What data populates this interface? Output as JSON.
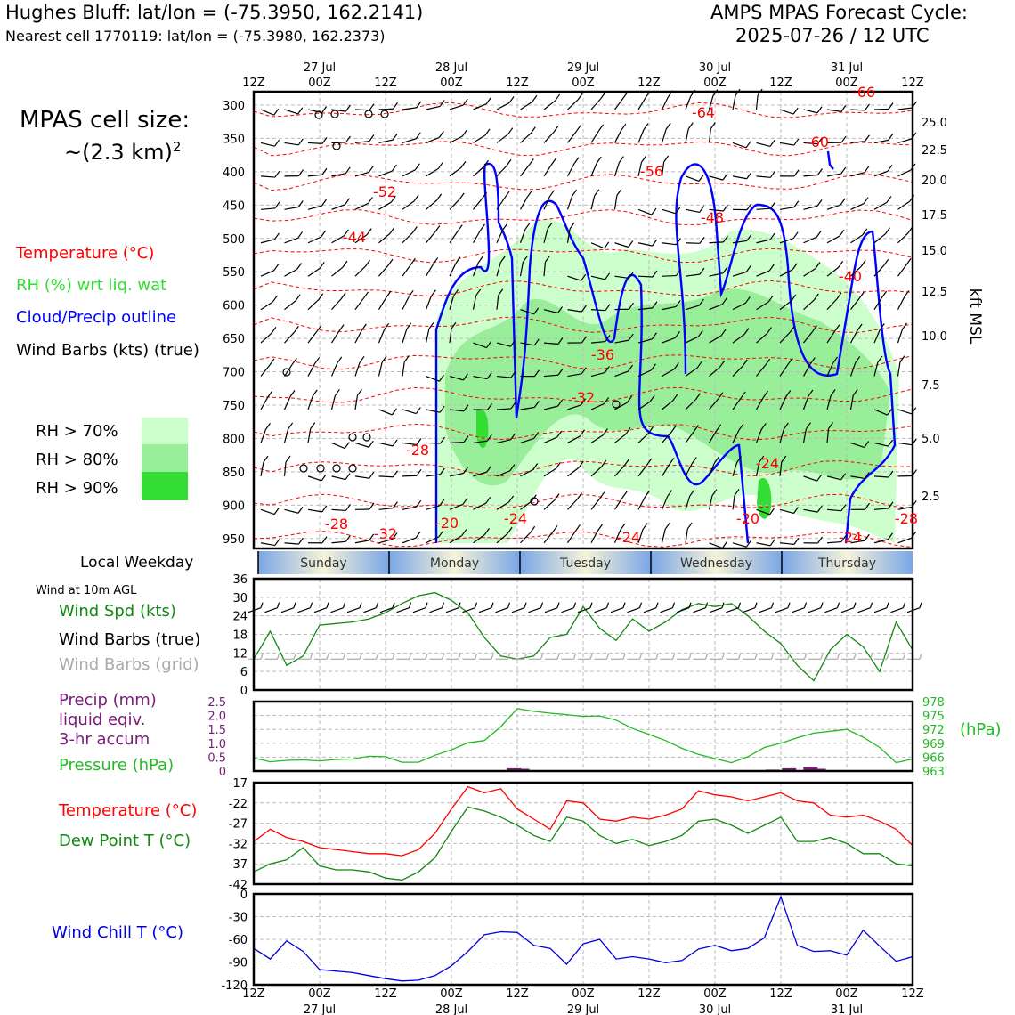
{
  "header": {
    "location_line": "Hughes Bluff: lat/lon = (-75.3950, 162.2141)",
    "nearest_line": "Nearest cell 1770119: lat/lon = (-75.3980, 162.2373)",
    "cycle_title": "AMPS MPAS Forecast Cycle:",
    "cycle_time": "2025-07-26 / 12 UTC"
  },
  "cell_size": {
    "label": "MPAS cell size:",
    "value": "~(2.3 km)",
    "superscript": "2"
  },
  "legend": {
    "temperature": "Temperature (°C)",
    "rh": "RH (%) wrt liq. wat",
    "cloud": "Cloud/Precip outline",
    "wind": "Wind Barbs (kts) (true)",
    "rh70": "RH > 70%",
    "rh80": "RH > 80%",
    "rh90": "RH > 90%",
    "colors": {
      "temperature": "#ff0000",
      "rh": "#33dd33",
      "cloud": "#0000ff",
      "rh70": "#ccffcc",
      "rh80": "#99ee99",
      "rh90": "#33dd33"
    }
  },
  "time_axis": {
    "top_hours": [
      "12Z",
      "00Z",
      "12Z",
      "00Z",
      "12Z",
      "00Z",
      "12Z",
      "00Z",
      "12Z",
      "00Z",
      "12Z"
    ],
    "dates": [
      "27 Jul",
      "28 Jul",
      "29 Jul",
      "30 Jul",
      "31 Jul"
    ]
  },
  "weekday": {
    "label": "Local Weekday",
    "days": [
      "Sunday",
      "Monday",
      "Tuesday",
      "Wednesday",
      "Thursday"
    ]
  },
  "wind_panel": {
    "title": "Wind at 10m AGL",
    "spd_label": "Wind Spd (kts)",
    "barbs_true_label": "Wind Barbs (true)",
    "barbs_grid_label": "Wind Barbs (grid)"
  },
  "precip_panel": {
    "precip_label_1": "Precip (mm)",
    "precip_label_2": "liquid eqiv.",
    "precip_label_3": "3-hr accum",
    "pressure_label": "Pressure (hPa)",
    "hpa_unit": "(hPa)"
  },
  "temp_panel": {
    "temp_label": "Temperature (°C)",
    "dew_label": "Dew Point T (°C)"
  },
  "chill_panel": {
    "label": "Wind Chill T (°C)"
  },
  "chart_data": [
    {
      "type": "line",
      "name": "sounding",
      "ylabel_right": "kft MSL",
      "pressure_ticks": [
        300,
        350,
        400,
        450,
        500,
        550,
        600,
        650,
        700,
        750,
        800,
        850,
        900,
        950
      ],
      "kft_ticks": [
        "25.0",
        "22.5",
        "20.0",
        "17.5",
        "15.0",
        "12.5",
        "10.0",
        "7.5",
        "5.0",
        "2.5"
      ],
      "temperature_labels": [
        "-64",
        "-60",
        "-56",
        "-52",
        "-48",
        "-44",
        "-40",
        "-36",
        "-32",
        "-28",
        "-24",
        "-24",
        "-20",
        "-24",
        "-28",
        "-32",
        "-20",
        "-24",
        "-28",
        "-66"
      ]
    },
    {
      "type": "line",
      "name": "wind_speed",
      "ylim": [
        0,
        36
      ],
      "yticks": [
        0,
        6,
        12,
        18,
        24,
        30,
        36
      ],
      "x": [
        0,
        1,
        2,
        3,
        4,
        5,
        6,
        7,
        8,
        9,
        10,
        11,
        12,
        13,
        14,
        15,
        16,
        17,
        18,
        19,
        20,
        21,
        22,
        23,
        24,
        25,
        26,
        27,
        28,
        29,
        30,
        31,
        32,
        33,
        34,
        35,
        36,
        37,
        38,
        39,
        40
      ],
      "values": [
        10,
        19,
        8,
        11,
        21,
        21.5,
        22,
        23,
        25,
        28,
        30.5,
        31.5,
        29,
        25,
        17,
        11,
        10,
        11,
        17,
        18,
        27,
        20,
        16,
        23,
        19,
        22,
        26,
        28,
        27,
        28,
        24,
        19,
        15,
        8,
        3,
        13,
        18,
        14,
        6,
        22,
        13
      ]
    },
    {
      "type": "line",
      "name": "pressure",
      "ylim": [
        963,
        978
      ],
      "yticks_left": [
        "0",
        "0.5",
        "1.0",
        "1.5",
        "2.0",
        "2.5"
      ],
      "yticks_right": [
        "963",
        "966",
        "969",
        "972",
        "975",
        "978"
      ],
      "x": [
        0,
        1,
        2,
        3,
        4,
        5,
        6,
        7,
        8,
        9,
        10,
        11,
        12,
        13,
        14,
        15,
        16,
        17,
        18,
        19,
        20,
        21,
        22,
        23,
        24,
        25,
        26,
        27,
        28,
        29,
        30,
        31,
        32,
        33,
        34,
        35,
        36,
        37,
        38,
        39,
        40
      ],
      "values": [
        965.8,
        965.0,
        965.3,
        965.4,
        965.2,
        965.5,
        965.6,
        966.2,
        966.1,
        964.9,
        964.9,
        966.4,
        967.6,
        969.1,
        969.6,
        972.6,
        976.5,
        975.9,
        975.5,
        975.2,
        974.8,
        974.9,
        974.0,
        972.2,
        970.9,
        969.6,
        967.9,
        966.6,
        965.7,
        964.8,
        966.1,
        968.1,
        969.0,
        970.2,
        971.2,
        971.6,
        972.0,
        970.3,
        968.1,
        964.8,
        965.6
      ],
      "precip_bars": [
        {
          "x": 15.8,
          "value": 0.1
        },
        {
          "x": 16.3,
          "value": 0.08
        },
        {
          "x": 31.5,
          "value": 0.05
        },
        {
          "x": 32.5,
          "value": 0.1
        },
        {
          "x": 33.8,
          "value": 0.15
        },
        {
          "x": 34.3,
          "value": 0.08
        }
      ]
    },
    {
      "type": "line",
      "name": "temperature",
      "ylim": [
        -42,
        -17
      ],
      "yticks": [
        -17,
        -22,
        -27,
        -32,
        -37,
        -42
      ],
      "x": [
        0,
        1,
        2,
        3,
        4,
        5,
        6,
        7,
        8,
        9,
        10,
        11,
        12,
        13,
        14,
        15,
        16,
        17,
        18,
        19,
        20,
        21,
        22,
        23,
        24,
        25,
        26,
        27,
        28,
        29,
        30,
        31,
        32,
        33,
        34,
        35,
        36,
        37,
        38,
        39,
        40
      ],
      "series": [
        {
          "name": "Temperature",
          "color": "#ff0000",
          "values": [
            -31.5,
            -28.5,
            -30.5,
            -31.5,
            -33,
            -33.5,
            -34,
            -34.5,
            -34.5,
            -35,
            -33.5,
            -29.5,
            -23.5,
            -18,
            -19.5,
            -18.5,
            -23.5,
            -26,
            -28.5,
            -21.5,
            -22,
            -26,
            -26.5,
            -25.5,
            -26,
            -25,
            -23.5,
            -19,
            -20,
            -20.5,
            -21.5,
            -20.5,
            -19.5,
            -21.5,
            -22,
            -25,
            -25.5,
            -25,
            -26.5,
            -28.5,
            -32.5
          ]
        },
        {
          "name": "Dew Point",
          "color": "#118811",
          "values": [
            -39,
            -37,
            -36,
            -33,
            -37.5,
            -38.5,
            -38.5,
            -39,
            -40.5,
            -41,
            -39,
            -35.5,
            -29,
            -23,
            -24,
            -25.5,
            -27.5,
            -30,
            -31.5,
            -25.5,
            -26.5,
            -30,
            -32,
            -31,
            -32.5,
            -31.5,
            -30,
            -26.5,
            -26,
            -27.5,
            -29.5,
            -27.5,
            -25.5,
            -31.5,
            -31.5,
            -30.5,
            -32,
            -34.5,
            -34.5,
            -37,
            -37.5
          ]
        }
      ]
    },
    {
      "type": "line",
      "name": "wind_chill",
      "ylim": [
        -120,
        0
      ],
      "yticks": [
        0,
        -30,
        -60,
        -90,
        -120
      ],
      "x": [
        0,
        1,
        2,
        3,
        4,
        5,
        6,
        7,
        8,
        9,
        10,
        11,
        12,
        13,
        14,
        15,
        16,
        17,
        18,
        19,
        20,
        21,
        22,
        23,
        24,
        25,
        26,
        27,
        28,
        29,
        30,
        31,
        32,
        33,
        34,
        35,
        36,
        37,
        38,
        39,
        40
      ],
      "values": [
        -72,
        -86,
        -62,
        -76,
        -100,
        -102,
        -104,
        -108,
        -112,
        -115,
        -114,
        -108,
        -95,
        -76,
        -54,
        -50,
        -51,
        -68,
        -72,
        -93,
        -66,
        -60,
        -86,
        -83,
        -86,
        -91,
        -88,
        -73,
        -68,
        -75,
        -72,
        -58,
        -4,
        -68,
        -76,
        -75,
        -81,
        -48,
        -69,
        -89,
        -83
      ]
    }
  ]
}
